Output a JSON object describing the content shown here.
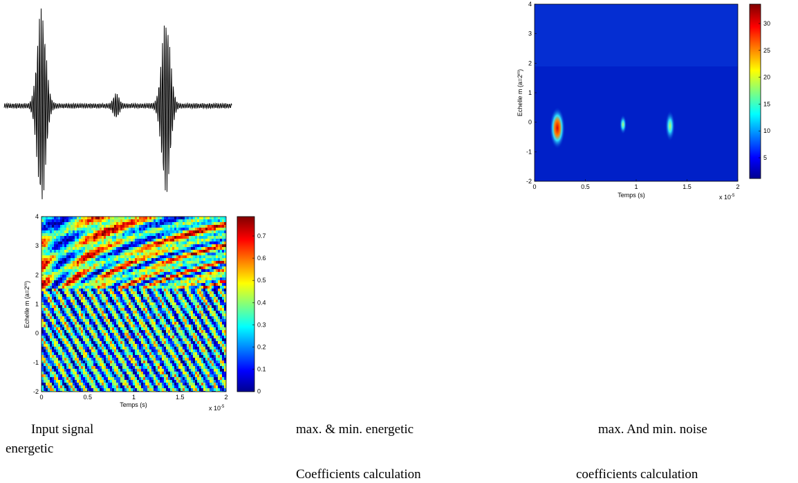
{
  "figure_noise": {
    "y_label": "Echelle m (a=2",
    "y_label_sup": "m",
    "y_label_end": ")",
    "y_ticks": [
      "4",
      "3",
      "2",
      "1",
      "0",
      "-1",
      "-2"
    ],
    "x_ticks": [
      "0",
      "0.5",
      "1",
      "1.5",
      "2"
    ],
    "x_label": "Temps (s)",
    "x_scale": "x 10",
    "x_scale_sup": "-5",
    "colorbar_ticks": [
      "30",
      "25",
      "20",
      "15",
      "10",
      "5"
    ]
  },
  "figure_energy": {
    "y_label": "Echelle m (a=2",
    "y_label_sup": "m",
    "y_label_end": ")",
    "y_ticks": [
      "4",
      "3",
      "2",
      "1",
      "0",
      "-1",
      "-2"
    ],
    "x_ticks": [
      "0",
      "0.5",
      "1",
      "1.5",
      "2"
    ],
    "x_label": "Temps (s)",
    "x_scale": "x 10",
    "x_scale_sup": "-5",
    "colorbar_ticks": [
      "0.7",
      "0.6",
      "0.5",
      "0.4",
      "0.3",
      "0.2",
      "0.1",
      "0"
    ]
  },
  "captions": {
    "input_line1": "Input signal",
    "input_line2": "energetic",
    "energetic_line1": "max. & min. energetic",
    "energetic_line2": "Coefficients calculation",
    "noise_line1": "max. And min. noise",
    "noise_line2": "coefficients calculation"
  }
}
